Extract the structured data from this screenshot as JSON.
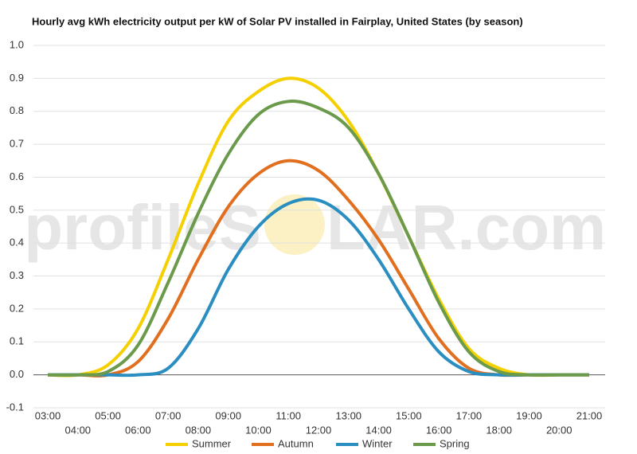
{
  "chart_data": {
    "type": "line",
    "title": "Hourly avg kWh electricity output per kW of Solar PV installed in Fairplay, United States (by season)",
    "watermark": [
      "profileS",
      "LAR.com"
    ],
    "categories": [
      "03:00",
      "04:00",
      "05:00",
      "06:00",
      "07:00",
      "08:00",
      "09:00",
      "10:00",
      "11:00",
      "12:00",
      "13:00",
      "14:00",
      "15:00",
      "16:00",
      "17:00",
      "18:00",
      "19:00",
      "20:00",
      "21:00"
    ],
    "series": [
      {
        "name": "Summer",
        "color": "#f5d000",
        "values": [
          0,
          0,
          0.03,
          0.14,
          0.35,
          0.58,
          0.77,
          0.86,
          0.9,
          0.87,
          0.77,
          0.61,
          0.42,
          0.23,
          0.08,
          0.02,
          0,
          0,
          0
        ]
      },
      {
        "name": "Autumn",
        "color": "#e07020",
        "values": [
          0,
          0,
          0,
          0.04,
          0.17,
          0.35,
          0.51,
          0.61,
          0.65,
          0.62,
          0.53,
          0.41,
          0.26,
          0.11,
          0.02,
          0,
          0,
          0,
          0
        ]
      },
      {
        "name": "Winter",
        "color": "#2a8fc0",
        "values": [
          0,
          0,
          0,
          0,
          0.02,
          0.14,
          0.32,
          0.45,
          0.52,
          0.53,
          0.47,
          0.35,
          0.2,
          0.07,
          0.01,
          0,
          0,
          0,
          0
        ]
      },
      {
        "name": "Spring",
        "color": "#6a9a4a",
        "values": [
          0,
          0,
          0.01,
          0.09,
          0.28,
          0.49,
          0.67,
          0.79,
          0.83,
          0.81,
          0.75,
          0.61,
          0.42,
          0.22,
          0.07,
          0.01,
          0,
          0,
          0
        ]
      }
    ],
    "ylim": [
      -0.1,
      1.0
    ],
    "yticks": [
      -0.1,
      {
        "value": 0,
        "label": "0.0"
      },
      0.1,
      0.2,
      0.3,
      0.4,
      0.5,
      0.6,
      0.7,
      0.8,
      0.9,
      {
        "value": 1,
        "label": "1.0"
      }
    ],
    "grid": true
  }
}
